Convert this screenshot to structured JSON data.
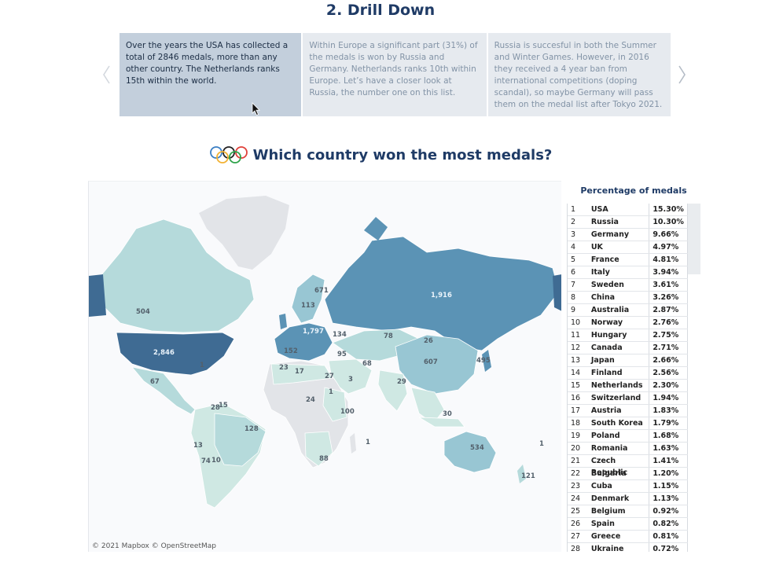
{
  "section": {
    "title": "2. Drill Down"
  },
  "carousel": {
    "cards": [
      "Over the years the USA has collected a total of 2846 medals, more than any other country. The Netherlands ranks 15th within the  world.",
      "Within Europe a significant part (31%) of the medals is won by Russia and Germany. Netherlands ranks 10th within Europe. Let’s have a closer look at Russia, the number one on this list.",
      "Russia is succesful in both the Summer and Winter Games. However, in 2016 they received a 4 year ban from international competitions (doping scandal), so maybe Germany will pass them on the medal list after Tokyo 2021."
    ],
    "prev_icon": "chevron-left-icon",
    "next_icon": "chevron-right-icon"
  },
  "question": {
    "title": "Which country won the most medals?",
    "icon": "olympic-rings-icon"
  },
  "map": {
    "attribution": "© 2021 Mapbox © OpenStreetMap",
    "labels": {
      "usa": "2,846",
      "russia": "1,916",
      "canada": "504",
      "europe": "1,797",
      "china": "607",
      "australia": "534",
      "brazil": "128",
      "kazakhstan": "78",
      "mongolia": "26",
      "japan": "495",
      "greenland_region": "671",
      "iceland_region": "113",
      "mexico": "67",
      "caribbean": "1",
      "morocco": "23",
      "algeria": "17",
      "egypt": "27",
      "iran": "68",
      "saudi": "3",
      "india": "29",
      "kenya": "1",
      "south_africa": "88",
      "tanzania": "100",
      "nigeria": "24",
      "argentina": "74",
      "chile": "13",
      "uruguay": "10",
      "colombia": "28",
      "venezuela": "15",
      "new_zealand": "121",
      "turkey": "95",
      "ukraine": "134",
      "spain": "152",
      "madagascar": "1",
      "indonesia": "30",
      "pacific": "1"
    }
  },
  "percentage_table": {
    "title": "Percentage of medals",
    "rows": [
      {
        "rank": "1",
        "country": "USA",
        "pct": "15.30%"
      },
      {
        "rank": "2",
        "country": "Russia",
        "pct": "10.30%"
      },
      {
        "rank": "3",
        "country": "Germany",
        "pct": "9.66%"
      },
      {
        "rank": "4",
        "country": "UK",
        "pct": "4.97%"
      },
      {
        "rank": "5",
        "country": "France",
        "pct": "4.81%"
      },
      {
        "rank": "6",
        "country": "Italy",
        "pct": "3.94%"
      },
      {
        "rank": "7",
        "country": "Sweden",
        "pct": "3.61%"
      },
      {
        "rank": "8",
        "country": "China",
        "pct": "3.26%"
      },
      {
        "rank": "9",
        "country": "Australia",
        "pct": "2.87%"
      },
      {
        "rank": "10",
        "country": "Norway",
        "pct": "2.76%"
      },
      {
        "rank": "11",
        "country": "Hungary",
        "pct": "2.75%"
      },
      {
        "rank": "12",
        "country": "Canada",
        "pct": "2.71%"
      },
      {
        "rank": "13",
        "country": "Japan",
        "pct": "2.66%"
      },
      {
        "rank": "14",
        "country": "Finland",
        "pct": "2.56%"
      },
      {
        "rank": "15",
        "country": "Netherlands",
        "pct": "2.30%"
      },
      {
        "rank": "16",
        "country": "Switzerland",
        "pct": "1.94%"
      },
      {
        "rank": "17",
        "country": "Austria",
        "pct": "1.83%"
      },
      {
        "rank": "18",
        "country": "South Korea",
        "pct": "1.79%"
      },
      {
        "rank": "19",
        "country": "Poland",
        "pct": "1.68%"
      },
      {
        "rank": "20",
        "country": "Romania",
        "pct": "1.63%"
      },
      {
        "rank": "21",
        "country": "Czech Republic",
        "pct": "1.41%"
      },
      {
        "rank": "22",
        "country": "Bulgaria",
        "pct": "1.20%"
      },
      {
        "rank": "23",
        "country": "Cuba",
        "pct": "1.15%"
      },
      {
        "rank": "24",
        "country": "Denmark",
        "pct": "1.13%"
      },
      {
        "rank": "25",
        "country": "Belgium",
        "pct": "0.92%"
      },
      {
        "rank": "26",
        "country": "Spain",
        "pct": "0.82%"
      },
      {
        "rank": "27",
        "country": "Greece",
        "pct": "0.81%"
      },
      {
        "rank": "28",
        "country": "Ukraine",
        "pct": "0.72%"
      }
    ]
  },
  "colors": {
    "darkest": "#3f6b93",
    "dark": "#5b93b5",
    "mid": "#98c6d3",
    "light": "#b5dadb",
    "lightest": "#cfe8e3",
    "no_data": "#e2e4e8",
    "active_card": "#c3cfdc",
    "inactive_card": "#e6eaef"
  }
}
